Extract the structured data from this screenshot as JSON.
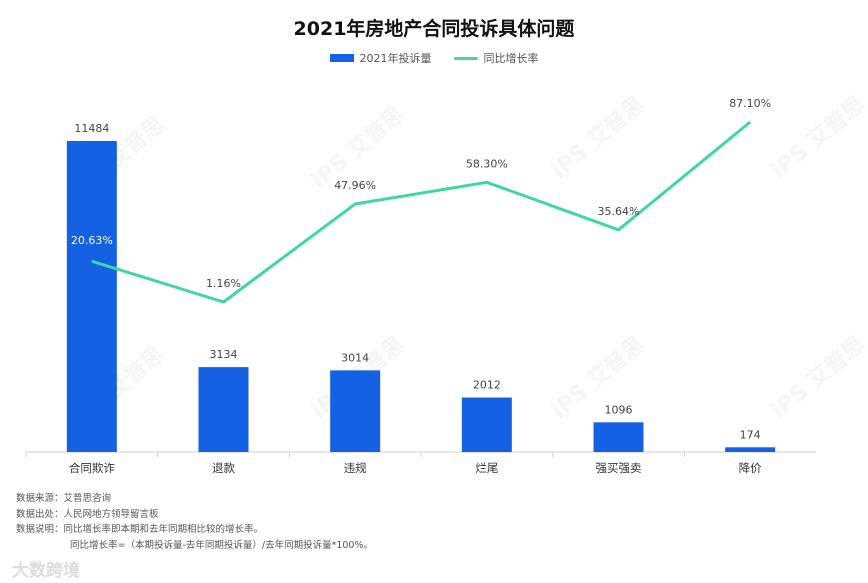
{
  "chart_data": {
    "type": "bar",
    "title": "2021年房地产合同投诉具体问题",
    "categories": [
      "合同欺诈",
      "退款",
      "违规",
      "烂尾",
      "强买强卖",
      "降价"
    ],
    "series": [
      {
        "name": "2021年投诉量",
        "kind": "bar",
        "values": [
          11484,
          3134,
          3014,
          2012,
          1096,
          174
        ],
        "color": "#1461e4"
      },
      {
        "name": "同比增长率",
        "kind": "line",
        "values": [
          20.63,
          1.16,
          47.96,
          58.3,
          35.64,
          87.1
        ],
        "labels": [
          "20.63%",
          "1.16%",
          "47.96%",
          "58.30%",
          "35.64%",
          "87.10%"
        ],
        "color": "#3fd5a8"
      }
    ],
    "ylim_bar": [
      0,
      11484
    ],
    "ylim_line": [
      1.16,
      87.1
    ],
    "legend_position": "top-center",
    "grid": false
  },
  "notes": [
    "数据来源：艾普思咨询",
    "数据出处：人民网地方领导留言板",
    "数据说明：同比增长率即本期和去年同期相比较的增长率。",
    "同比增长率=（本期投诉量-去年同期投诉量）/去年同期投诉量*100%。"
  ],
  "watermark": "iPS 艾普思",
  "footer_logo": "大数跨境"
}
